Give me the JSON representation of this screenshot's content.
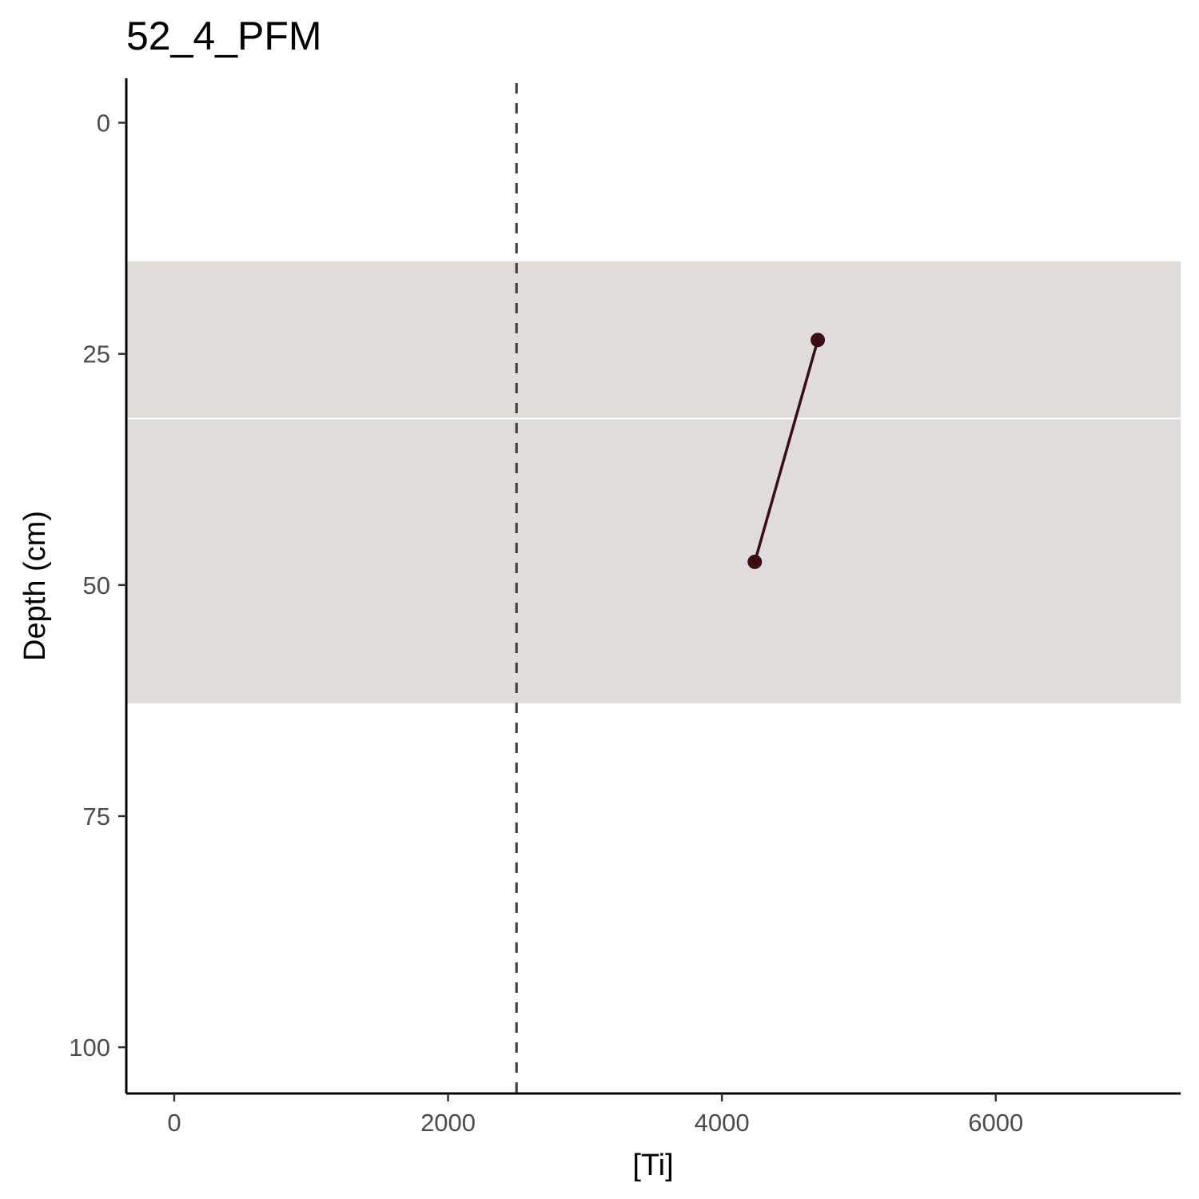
{
  "chart_data": {
    "type": "line",
    "title": "52_4_PFM",
    "xlabel": "[Ti]",
    "ylabel": "Depth (cm)",
    "xlim": [
      -350,
      7350
    ],
    "ylim": [
      105,
      -4.8
    ],
    "y_reversed": true,
    "x_ticks": [
      0,
      2000,
      4000,
      6000
    ],
    "x_tick_labels": [
      "0",
      "2000",
      "4000",
      "6000"
    ],
    "y_ticks": [
      0,
      25,
      50,
      75,
      100
    ],
    "y_tick_labels": [
      "0",
      "25",
      "50",
      "75",
      "100"
    ],
    "grid": false,
    "legend": "none",
    "shaded_band": {
      "y_from": 15,
      "y_to": 62.8,
      "color": "#dfdddc"
    },
    "band_divider": {
      "y": 32,
      "color": "#ffffff"
    },
    "reference_line": {
      "x": 2500,
      "style": "dashed",
      "color": "#404040"
    },
    "series": [
      {
        "points": [
          {
            "x": 4700,
            "y": 23.5
          },
          {
            "x": 4240,
            "y": 47.5
          }
        ],
        "color": "#3a0e14"
      }
    ]
  }
}
